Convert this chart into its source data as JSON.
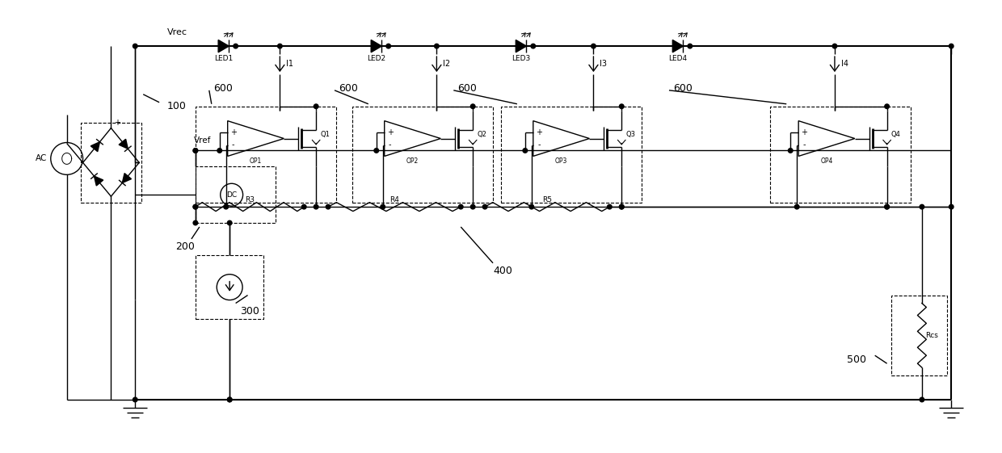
{
  "bg_color": "#ffffff",
  "fig_width": 12.4,
  "fig_height": 5.61,
  "lw": 1.0,
  "lw2": 1.5,
  "labels": {
    "vrec": "Vrec",
    "vref": "Vref",
    "ac": "AC",
    "dc": "DC",
    "led1": "LED1",
    "led2": "LED2",
    "led3": "LED3",
    "led4": "LED4",
    "i1": "I1",
    "i2": "I2",
    "i3": "I3",
    "i4": "I4",
    "op1": "OP1",
    "op2": "OP2",
    "op3": "OP3",
    "op4": "OP4",
    "q1": "Q1",
    "q2": "Q2",
    "q3": "Q3",
    "q4": "Q4",
    "r3": "R3",
    "r4": "R4",
    "r5": "R5",
    "rcs": "Rcs",
    "n100": "100",
    "n200": "200",
    "n300": "300",
    "n400": "400",
    "n500": "500",
    "n600": "600"
  }
}
